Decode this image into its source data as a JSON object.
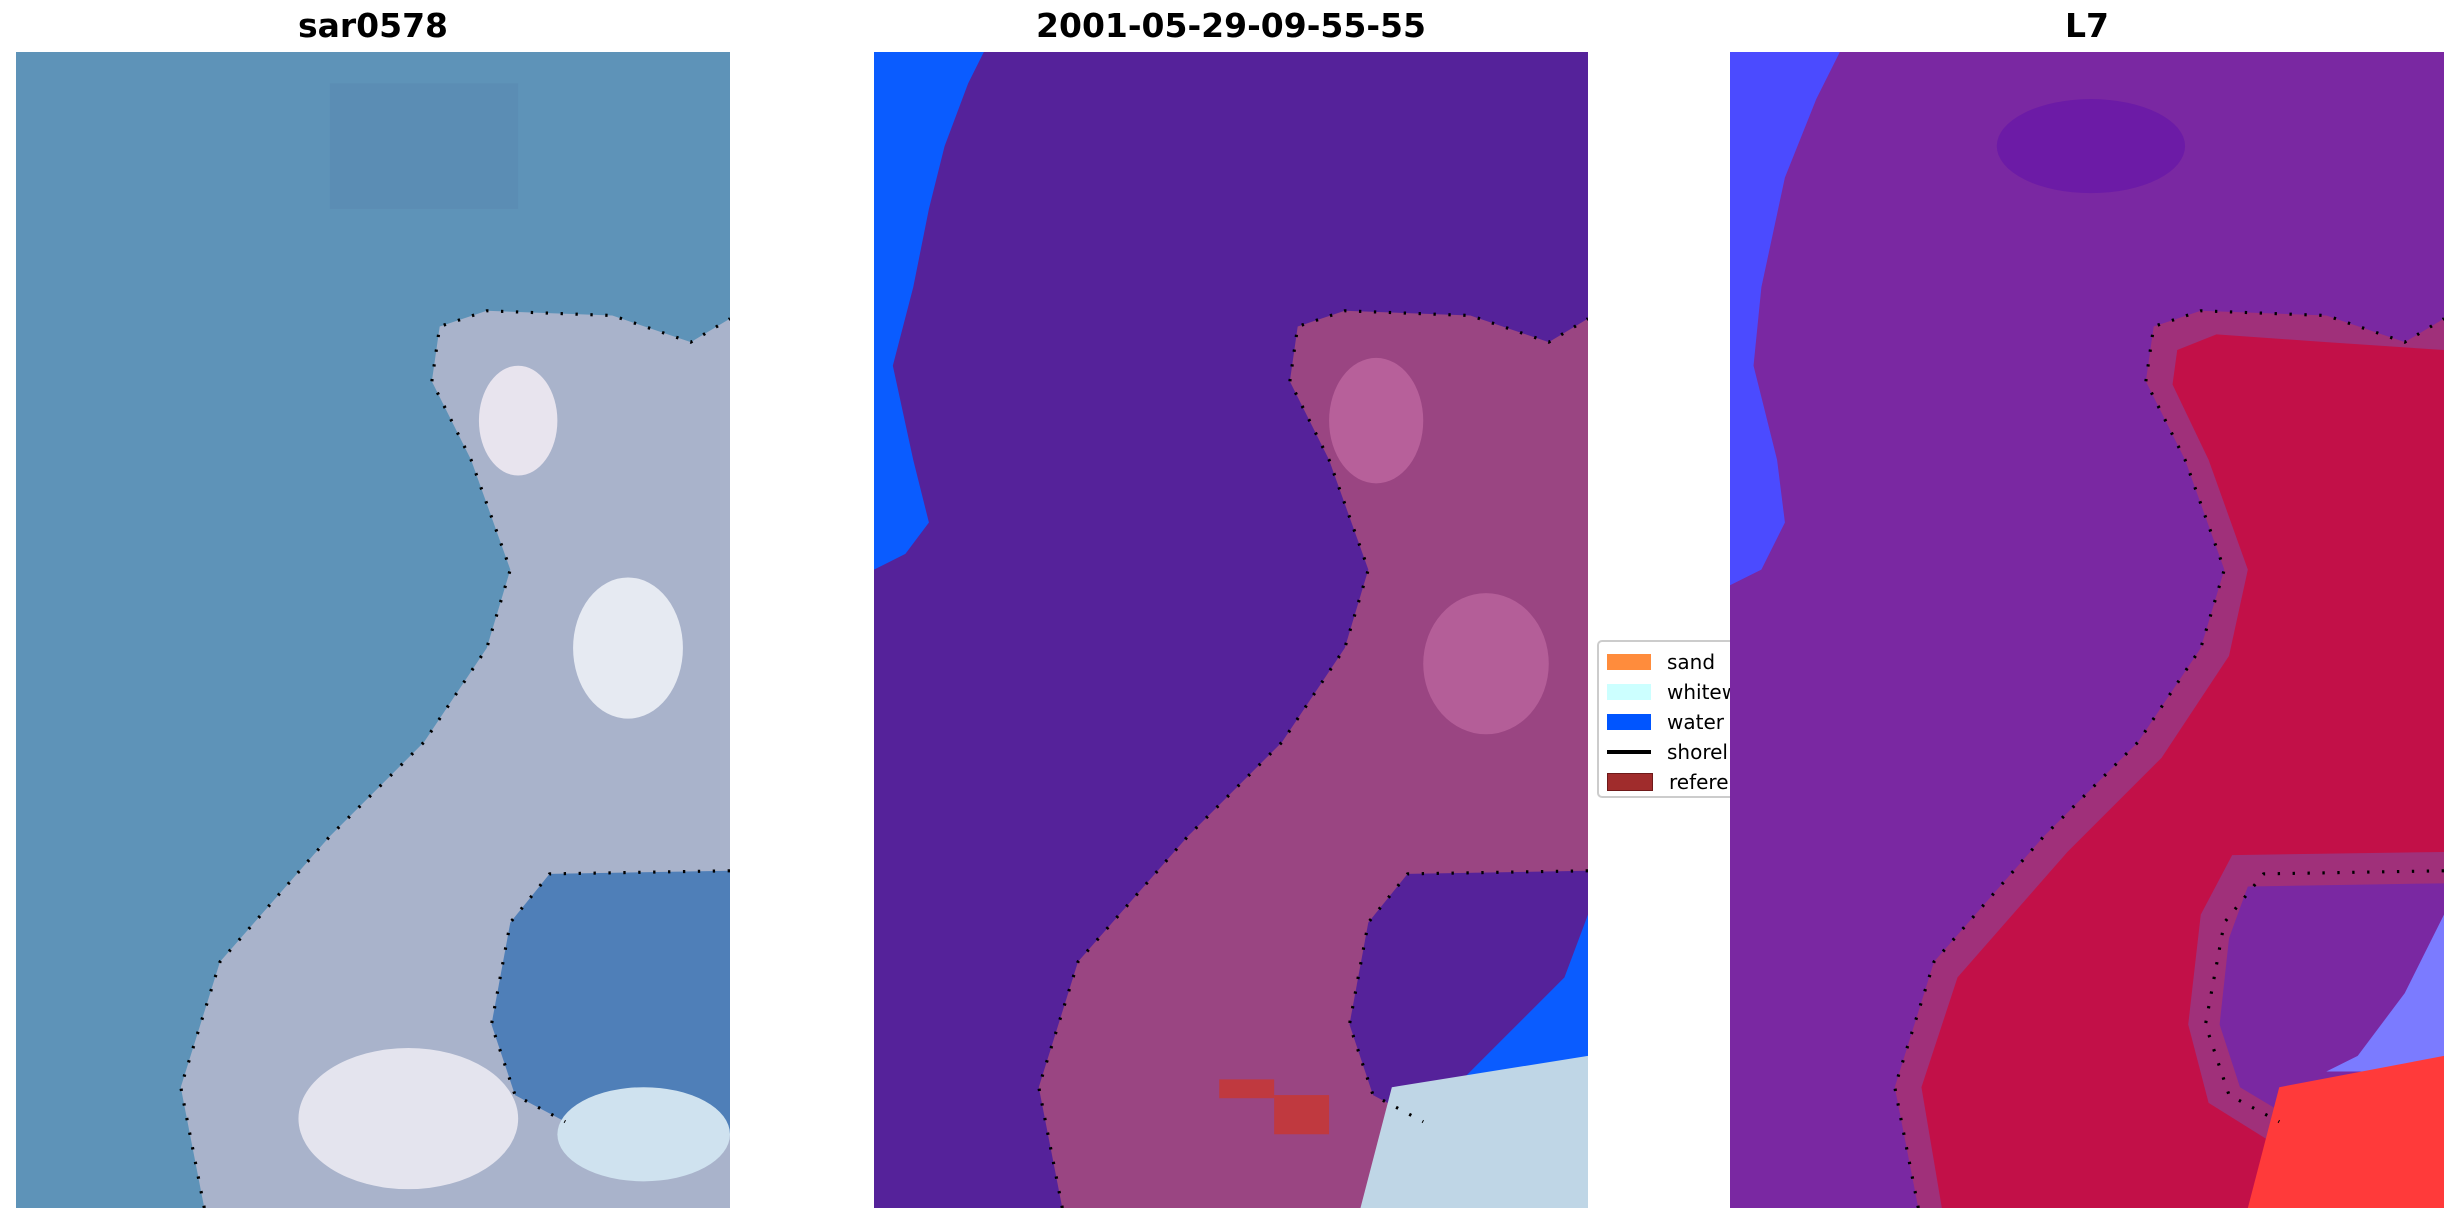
{
  "panels": [
    {
      "title": "sar0578"
    },
    {
      "title": "2001-05-29-09-55-55"
    },
    {
      "title": "L7"
    }
  ],
  "legend": {
    "items": [
      {
        "label": "sand",
        "color": "#ff8c3c"
      },
      {
        "label": "whitew",
        "color": "#ccffff"
      },
      {
        "label": "water",
        "color": "#0055ff"
      },
      {
        "label": "shorel",
        "color": "#000000"
      },
      {
        "label": "referen",
        "color": "#a02c2c"
      }
    ]
  },
  "colors": {
    "sea_rgb": "#5e93b8",
    "land_rgb": "#a9b3cb",
    "class_water_bg": "#55229a",
    "class_land": "#9a4582",
    "index_water": "#7a28a2",
    "index_land": "#c21048"
  }
}
